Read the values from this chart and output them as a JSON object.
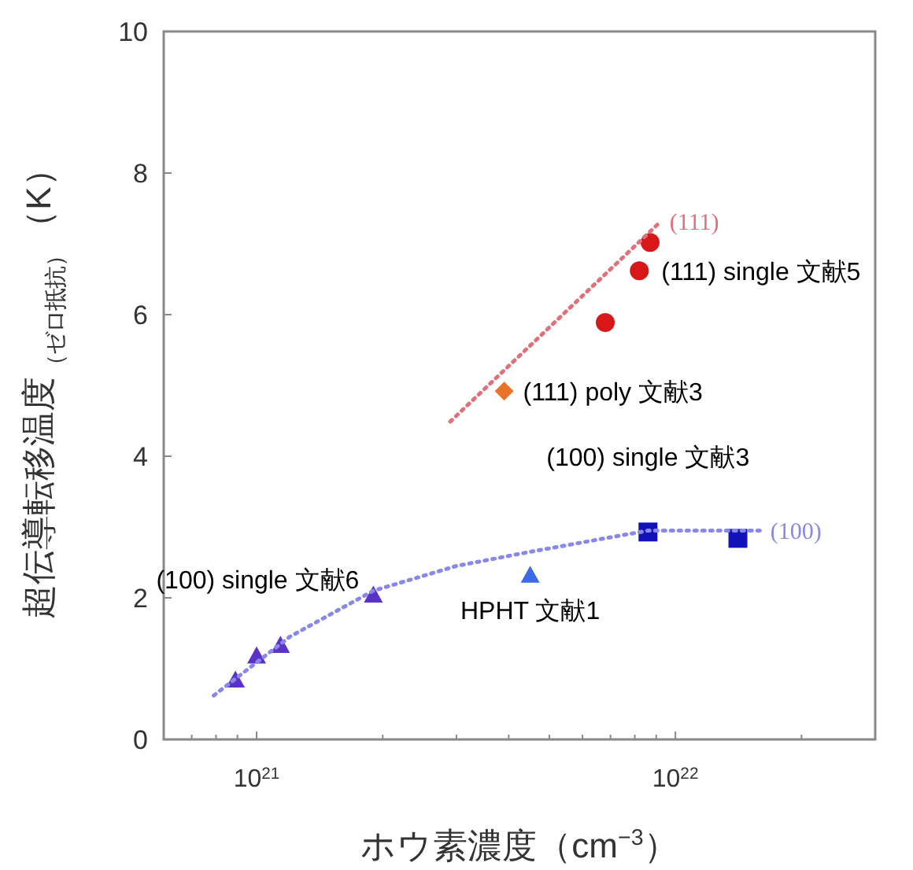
{
  "chart_data": {
    "type": "scatter",
    "xlabel": "ホウ素濃度（cm$^{−3}$）",
    "ylabel": "超伝導転移温度$_{（ゼロ抵抗）}$（K）",
    "log": "x",
    "grid": false,
    "xlim": [
      6e+20,
      3e+22
    ],
    "xticks": [
      {
        "value": 7e+20,
        "label": null
      },
      {
        "value": 8e+20,
        "label": null
      },
      {
        "value": 9e+20,
        "label": null
      },
      {
        "value": 1e+21,
        "label": "10$^{21}$"
      },
      {
        "value": 2e+21,
        "label": null
      },
      {
        "value": 3e+21,
        "label": null
      },
      {
        "value": 4e+21,
        "label": null
      },
      {
        "value": 5e+21,
        "label": null
      },
      {
        "value": 6e+21,
        "label": null
      },
      {
        "value": 7e+21,
        "label": null
      },
      {
        "value": 8e+21,
        "label": null
      },
      {
        "value": 9e+21,
        "label": null
      },
      {
        "value": 1e+22,
        "label": "10$^{22}$"
      },
      {
        "value": 2e+22,
        "label": null
      },
      {
        "value": 3e+22,
        "label": null
      }
    ],
    "ylim": [
      0,
      10
    ],
    "yticks": [
      0,
      2,
      4,
      6,
      8,
      10
    ],
    "series": [
      {
        "name": "(100) single 文献6",
        "marker": "triangle",
        "color": "#5a32c8",
        "x": [
          8.9e+20,
          1e+21,
          1.14e+21,
          1.9e+21
        ],
        "values": [
          0.84,
          1.18,
          1.33,
          2.04
        ]
      },
      {
        "name": "HPHT 文献1",
        "marker": "triangle",
        "color": "#3a6ae8",
        "x": [
          4.5e+21
        ],
        "values": [
          2.32
        ]
      },
      {
        "name": "(100) single 文献3",
        "marker": "square",
        "color": "#1212b8",
        "x": [
          8.6e+21,
          1.41e+22
        ],
        "values": [
          2.93,
          2.84
        ]
      },
      {
        "name": "(111) single 文献5",
        "marker": "circle",
        "color": "#d81818",
        "x": [
          6.8e+21,
          8.2e+21,
          8.7e+21
        ],
        "values": [
          5.89,
          6.62,
          7.02
        ]
      },
      {
        "name": "(111) poly 文献3",
        "marker": "diamond",
        "color": "#e8742a",
        "x": [
          3.9e+21
        ],
        "values": [
          4.92
        ]
      },
      {
        "name": "(111)",
        "type": "line",
        "marker": "none",
        "line_style": "dotted",
        "color": "#e0707a",
        "x": [
          2.9e+21,
          9.2e+21
        ],
        "values": [
          4.49,
          7.31
        ]
      },
      {
        "name": "(100)",
        "type": "line",
        "marker": "none",
        "line_style": "dotted",
        "color": "#8888e8",
        "x": [
          7.9e+20,
          1.2e+21,
          1.9e+21,
          3e+21,
          4.5e+21,
          8.6e+21,
          1.6e+22
        ],
        "values": [
          0.62,
          1.45,
          2.1,
          2.45,
          2.65,
          2.95,
          2.95
        ]
      }
    ]
  }
}
